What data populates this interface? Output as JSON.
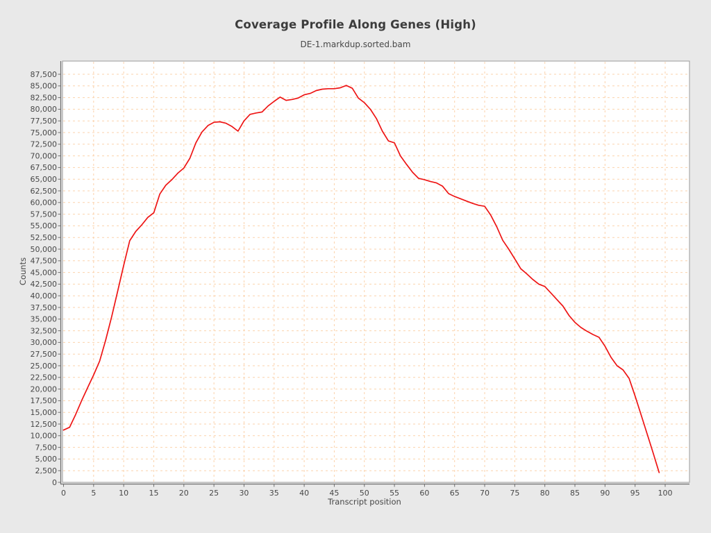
{
  "window": {
    "background": "#e9e9e9"
  },
  "style": {
    "plot_bg": "#ffffff",
    "plot_border_color": "#9a9a9a",
    "axis_color": "#6e6e6e",
    "grid_color": "#fbd2ab",
    "text_color": "#474747",
    "title_color": "#3c3c3c"
  },
  "chart_data": {
    "type": "line",
    "title": "Coverage Profile Along Genes (High)",
    "subtitle": "DE-1.markdup.sorted.bam",
    "xlabel": "Transcript position",
    "ylabel": "Counts",
    "xlim": [
      0,
      100
    ],
    "ylim": [
      0,
      87500
    ],
    "grid": true,
    "grid_style": "dashed",
    "legend_position": "none",
    "x_ticks": [
      0,
      5,
      10,
      15,
      20,
      25,
      30,
      35,
      40,
      45,
      50,
      55,
      60,
      65,
      70,
      75,
      80,
      85,
      90,
      95,
      100
    ],
    "y_ticks": [
      0,
      2500,
      5000,
      7500,
      10000,
      12500,
      15000,
      17500,
      20000,
      22500,
      25000,
      27500,
      30000,
      32500,
      35000,
      37500,
      40000,
      42500,
      45000,
      47500,
      50000,
      52500,
      55000,
      57500,
      60000,
      62500,
      65000,
      67500,
      70000,
      72500,
      75000,
      77500,
      80000,
      82500,
      85000,
      87500
    ],
    "series": [
      {
        "name": "DE-1.markdup.sorted.bam",
        "color": "#ee1414",
        "x": [
          0,
          1,
          2,
          3,
          4,
          5,
          6,
          7,
          8,
          9,
          10,
          11,
          12,
          13,
          14,
          15,
          16,
          17,
          18,
          19,
          20,
          21,
          22,
          23,
          24,
          25,
          26,
          27,
          28,
          29,
          30,
          31,
          32,
          33,
          34,
          35,
          36,
          37,
          38,
          39,
          40,
          41,
          42,
          43,
          44,
          45,
          46,
          47,
          48,
          49,
          50,
          51,
          52,
          53,
          54,
          55,
          56,
          57,
          58,
          59,
          60,
          61,
          62,
          63,
          64,
          65,
          66,
          67,
          68,
          69,
          70,
          71,
          72,
          73,
          74,
          75,
          76,
          77,
          78,
          79,
          80,
          81,
          82,
          83,
          84,
          85,
          86,
          87,
          88,
          89,
          90,
          91,
          92,
          93,
          94,
          95,
          96,
          97,
          98,
          99
        ],
        "values": [
          11200,
          11800,
          14500,
          17500,
          20300,
          23000,
          26000,
          30500,
          35500,
          41000,
          46500,
          51800,
          53800,
          55200,
          56800,
          57800,
          61800,
          63700,
          64900,
          66300,
          67400,
          69500,
          72800,
          75100,
          76500,
          77200,
          77300,
          77000,
          76300,
          75300,
          77500,
          78900,
          79200,
          79400,
          80700,
          81700,
          82600,
          81900,
          82100,
          82400,
          83100,
          83400,
          84000,
          84300,
          84400,
          84400,
          84600,
          85100,
          84500,
          82400,
          81400,
          80000,
          78000,
          75300,
          73200,
          72800,
          70000,
          68200,
          66500,
          65200,
          64900,
          64500,
          64200,
          63500,
          61900,
          61300,
          60800,
          60300,
          59800,
          59400,
          59200,
          57300,
          54800,
          51900,
          50000,
          47900,
          45800,
          44700,
          43500,
          42500,
          42000,
          40600,
          39200,
          37800,
          35800,
          34300,
          33200,
          32400,
          31700,
          31100,
          29200,
          26800,
          25000,
          24100,
          22300,
          18500,
          14500,
          10400,
          6300,
          2100
        ]
      }
    ]
  }
}
